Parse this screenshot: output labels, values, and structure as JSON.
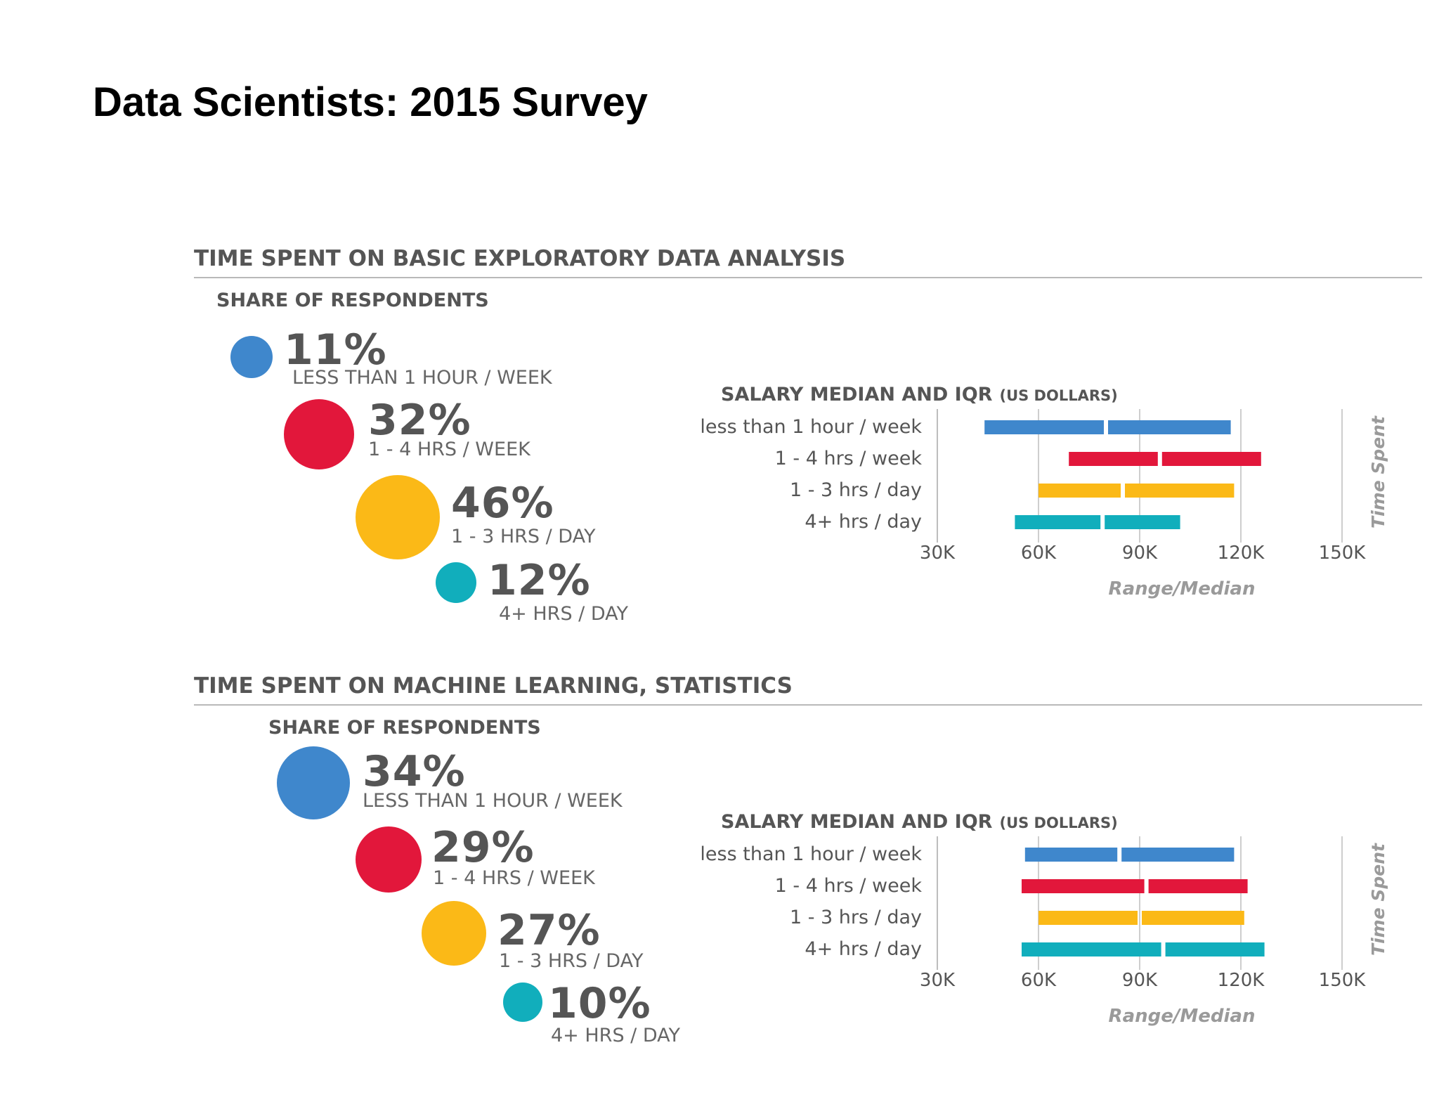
{
  "title": "Data Scientists: 2015 Survey",
  "colors": {
    "blue": "#3f87cc",
    "red": "#e2173b",
    "yellow": "#fbb917",
    "teal": "#11aebc",
    "text": "#555555",
    "axis": "#bdbdbd"
  },
  "panels": [
    {
      "title": "TIME SPENT ON BASIC EXPLORATORY DATA ANALYSIS",
      "share_title": "SHARE OF RESPONDENTS",
      "shares": [
        {
          "pct": "11%",
          "label": "LESS THAN 1 HOUR / WEEK",
          "value": 11,
          "color": "#3f87cc"
        },
        {
          "pct": "32%",
          "label": "1 - 4 HRS / WEEK",
          "value": 32,
          "color": "#e2173b"
        },
        {
          "pct": "46%",
          "label": "1 - 3 HRS / DAY",
          "value": 46,
          "color": "#fbb917"
        },
        {
          "pct": "12%",
          "label": "4+ HRS / DAY",
          "value": 12,
          "color": "#11aebc"
        }
      ]
    },
    {
      "title": "TIME SPENT ON MACHINE LEARNING, STATISTICS",
      "share_title": "SHARE OF RESPONDENTS",
      "shares": [
        {
          "pct": "34%",
          "label": "LESS THAN 1 HOUR / WEEK",
          "value": 34,
          "color": "#3f87cc"
        },
        {
          "pct": "29%",
          "label": "1 - 4 HRS / WEEK",
          "value": 29,
          "color": "#e2173b"
        },
        {
          "pct": "27%",
          "label": "1 - 3 HRS / DAY",
          "value": 27,
          "color": "#fbb917"
        },
        {
          "pct": "10%",
          "label": "4+ HRS / DAY",
          "value": 10,
          "color": "#11aebc"
        }
      ]
    }
  ],
  "chart_data": [
    {
      "type": "bar",
      "title": "SALARY MEDIAN AND IQR",
      "title_unit": "(US DOLLARS)",
      "xlabel": "Range/Median",
      "ylabel": "Time Spent",
      "xlim": [
        30000,
        150000
      ],
      "xticks": [
        30000,
        60000,
        90000,
        120000,
        150000
      ],
      "xtick_labels": [
        "30K",
        "60K",
        "90K",
        "120K",
        "150K"
      ],
      "grid": true,
      "categories": [
        "less than 1 hour / week",
        "1 - 4 hrs / week",
        "1 - 3 hrs / day",
        "4+ hrs / day"
      ],
      "series": [
        {
          "low": 44000,
          "median": 80000,
          "high": 117000,
          "color": "#3f87cc"
        },
        {
          "low": 69000,
          "median": 96000,
          "high": 126000,
          "color": "#e2173b"
        },
        {
          "low": 60000,
          "median": 85000,
          "high": 118000,
          "color": "#fbb917"
        },
        {
          "low": 53000,
          "median": 79000,
          "high": 102000,
          "color": "#11aebc"
        }
      ]
    },
    {
      "type": "bar",
      "title": "SALARY MEDIAN AND IQR",
      "title_unit": "(US DOLLARS)",
      "xlabel": "Range/Median",
      "ylabel": "Time Spent",
      "xlim": [
        30000,
        150000
      ],
      "xticks": [
        30000,
        60000,
        90000,
        120000,
        150000
      ],
      "xtick_labels": [
        "30K",
        "60K",
        "90K",
        "120K",
        "150K"
      ],
      "grid": true,
      "categories": [
        "less than 1 hour / week",
        "1 - 4 hrs / week",
        "1 - 3 hrs / day",
        "4+ hrs / day"
      ],
      "series": [
        {
          "low": 56000,
          "median": 84000,
          "high": 118000,
          "color": "#3f87cc"
        },
        {
          "low": 55000,
          "median": 92000,
          "high": 122000,
          "color": "#e2173b"
        },
        {
          "low": 60000,
          "median": 90000,
          "high": 121000,
          "color": "#fbb917"
        },
        {
          "low": 55000,
          "median": 97000,
          "high": 127000,
          "color": "#11aebc"
        }
      ]
    }
  ]
}
